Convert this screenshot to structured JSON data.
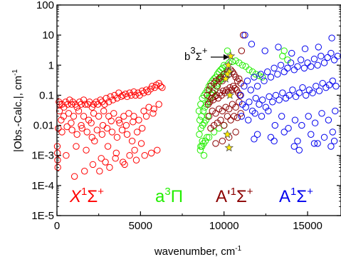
{
  "chart_data": {
    "type": "scatter",
    "title": "",
    "xlabel": "wavenumber, cm",
    "xlabel_sup": "-1",
    "ylabel": "|Obs.-Calc.|, cm",
    "ylabel_sup": "-1",
    "xlim": [
      0,
      17000
    ],
    "ylim": [
      1e-05,
      100
    ],
    "y_scale": "log",
    "grid": false,
    "x_ticks": [
      0,
      5000,
      10000,
      15000
    ],
    "x_tick_labels": [
      "0",
      "5000",
      "10000",
      "15000"
    ],
    "y_ticks": [
      100,
      10,
      1,
      0.1,
      0.01,
      0.001,
      0.0001,
      1e-05
    ],
    "y_tick_labels": [
      "100",
      "10",
      "1",
      "0.1",
      "0.01",
      "1E-3",
      "1E-4",
      "1E-5"
    ],
    "series": [
      {
        "color": "#ff0000",
        "marker": "circle-open",
        "x": [
          120,
          180,
          300,
          420,
          520,
          650,
          760,
          880,
          950,
          1100,
          1200,
          1350,
          1450,
          1600,
          1700,
          1850,
          1950,
          2100,
          2200,
          2350,
          2450,
          2600,
          2700,
          2850,
          2950,
          3100,
          3200,
          3350,
          3450,
          3600,
          3700,
          3850,
          3950,
          4100,
          4200,
          4350,
          4450,
          4600,
          4700,
          4850,
          4950,
          5100,
          5200,
          5350,
          5450,
          5600,
          5700,
          5850,
          5950,
          6100,
          6200,
          6300,
          150,
          400,
          700,
          1000,
          1300,
          1600,
          1900,
          2200,
          2500,
          2800,
          3100,
          3400,
          3700,
          4000,
          4300,
          4600,
          4900,
          5200,
          5500,
          5800,
          6100,
          80,
          300,
          600,
          900,
          1200,
          1500,
          1800,
          2100,
          2400,
          2700,
          3000,
          3300,
          3600,
          3900,
          4200,
          4500,
          4800,
          5100,
          20,
          30,
          40,
          50,
          550,
          1150,
          1750,
          2250,
          2650,
          3050,
          3550,
          3950,
          4350,
          4650,
          5050,
          250,
          850,
          1450,
          2050,
          2750,
          3250,
          3750,
          4150,
          4550,
          5350,
          5750,
          1050,
          1650,
          2150,
          2550,
          2900,
          3150,
          3500,
          4050,
          4750,
          5250,
          5650,
          6000
        ],
        "y": [
          0.06,
          0.05,
          0.05,
          0.04,
          0.06,
          0.05,
          0.07,
          0.05,
          0.06,
          0.05,
          0.04,
          0.06,
          0.05,
          0.07,
          0.05,
          0.05,
          0.06,
          0.04,
          0.05,
          0.06,
          0.05,
          0.07,
          0.06,
          0.05,
          0.08,
          0.06,
          0.09,
          0.07,
          0.1,
          0.08,
          0.12,
          0.09,
          0.1,
          0.11,
          0.09,
          0.12,
          0.1,
          0.13,
          0.1,
          0.12,
          0.1,
          0.14,
          0.12,
          0.15,
          0.13,
          0.16,
          0.2,
          0.18,
          0.22,
          0.25,
          0.2,
          0.18,
          0.03,
          0.02,
          0.025,
          0.02,
          0.03,
          0.02,
          0.015,
          0.025,
          0.02,
          0.03,
          0.02,
          0.025,
          0.015,
          0.02,
          0.025,
          0.02,
          0.015,
          0.03,
          0.04,
          0.035,
          0.05,
          0.008,
          0.006,
          0.009,
          0.007,
          0.005,
          0.008,
          0.006,
          0.004,
          0.007,
          0.005,
          0.008,
          0.006,
          0.004,
          0.007,
          0.005,
          0.003,
          0.006,
          0.008,
          0.002,
          0.0012,
          0.0007,
          0.0004,
          0.001,
          0.002,
          0.0015,
          0.003,
          0.0008,
          0.002,
          0.0012,
          0.0006,
          0.001,
          0.0015,
          0.0025,
          0.015,
          0.012,
          0.01,
          0.012,
          0.01,
          0.014,
          0.012,
          0.01,
          0.013,
          0.02,
          0.025,
          0.0002,
          0.0003,
          0.0005,
          0.0003,
          0.0006,
          0.0004,
          0.0008,
          0.0005,
          0.0007,
          0.001,
          0.0012,
          0.0015
        ]
      },
      {
        "color": "#22ee00",
        "marker": "circle-open",
        "x": [
          8500,
          8600,
          8700,
          8800,
          8900,
          9000,
          9100,
          9200,
          9300,
          9400,
          9500,
          9600,
          9700,
          9800,
          9900,
          10000,
          10100,
          10200,
          8550,
          8650,
          8750,
          8850,
          8950,
          9050,
          9150,
          9250,
          9350,
          9450,
          9550,
          9650,
          9750,
          9850,
          9950,
          10050,
          8520,
          8620,
          8720,
          8820,
          8920,
          9020,
          8600,
          8700,
          8800,
          9100,
          9400,
          9700,
          10000,
          10300,
          10500,
          10700,
          10900,
          11100,
          11300,
          11500,
          11700,
          11900,
          12100,
          12300,
          10200,
          13500,
          13600,
          13800,
          8580,
          8680,
          8780,
          8880,
          8980
        ],
        "y": [
          0.03,
          0.05,
          0.08,
          0.1,
          0.12,
          0.15,
          0.2,
          0.25,
          0.3,
          0.35,
          0.4,
          0.5,
          0.6,
          0.7,
          0.8,
          1.0,
          0.9,
          0.7,
          0.015,
          0.02,
          0.03,
          0.04,
          0.05,
          0.06,
          0.08,
          0.1,
          0.12,
          0.15,
          0.2,
          0.25,
          0.3,
          0.35,
          0.4,
          0.45,
          0.005,
          0.008,
          0.01,
          0.012,
          0.015,
          0.02,
          0.002,
          0.003,
          0.001,
          0.004,
          0.006,
          0.008,
          0.01,
          1.2,
          1.3,
          1.4,
          1.2,
          1.0,
          0.9,
          0.7,
          0.6,
          0.5,
          0.45,
          0.4,
          3.0,
          2.0,
          3.0,
          1.5,
          0.0015,
          0.002,
          0.0025,
          0.003,
          0.004
        ]
      },
      {
        "color": "#8b0000",
        "marker": "circle-open",
        "x": [
          9000,
          9100,
          9200,
          9300,
          9400,
          9500,
          9600,
          9700,
          9800,
          9900,
          10000,
          10100,
          10200,
          10300,
          10400,
          10500,
          10600,
          10700,
          10800,
          10900,
          11000,
          9050,
          9150,
          9250,
          9350,
          9450,
          9550,
          9650,
          9750,
          9850,
          9950,
          10050,
          10150,
          10250,
          10350,
          10450,
          10550,
          10650,
          10750,
          10850,
          10950,
          9100,
          9300,
          9500,
          9700,
          9900,
          10100,
          10300,
          10500,
          10700,
          10900,
          9200,
          9400,
          9600,
          9800,
          10000,
          10200,
          10400,
          10600,
          10800,
          11000,
          9500,
          9900,
          10300,
          10700,
          11050,
          11150
        ],
        "y": [
          0.1,
          0.15,
          0.2,
          0.12,
          0.25,
          0.3,
          0.2,
          0.35,
          0.4,
          0.3,
          0.5,
          0.4,
          0.6,
          0.5,
          0.7,
          0.6,
          0.5,
          0.4,
          0.3,
          0.35,
          0.25,
          0.05,
          0.06,
          0.08,
          0.07,
          0.09,
          0.1,
          0.08,
          0.12,
          0.1,
          0.14,
          0.12,
          0.15,
          0.13,
          0.18,
          0.15,
          0.2,
          0.17,
          0.15,
          0.12,
          0.1,
          0.02,
          0.03,
          0.025,
          0.035,
          0.03,
          0.04,
          0.035,
          0.05,
          0.04,
          0.06,
          0.008,
          0.01,
          0.012,
          0.015,
          0.01,
          0.02,
          0.015,
          0.02,
          0.018,
          0.025,
          0.0025,
          0.003,
          0.004,
          0.006,
          3.0,
          10.0
        ]
      },
      {
        "color": "#0000ee",
        "marker": "circle-open",
        "x": [
          11000,
          11200,
          11400,
          11600,
          11800,
          12000,
          12200,
          12400,
          12600,
          12800,
          13000,
          13200,
          13400,
          13600,
          13800,
          14000,
          14200,
          14400,
          14600,
          14800,
          15000,
          15200,
          15400,
          15600,
          15800,
          16000,
          16200,
          16400,
          16600,
          16800,
          11100,
          11300,
          11500,
          11700,
          11900,
          12100,
          12300,
          12500,
          12700,
          12900,
          13100,
          13300,
          13500,
          13700,
          13900,
          14100,
          14300,
          14500,
          14700,
          14900,
          15100,
          15300,
          15500,
          15700,
          15900,
          16100,
          16300,
          16500,
          16700,
          11050,
          11450,
          11850,
          12250,
          12650,
          13050,
          13450,
          13850,
          14250,
          14650,
          15050,
          15450,
          15850,
          16250,
          16650,
          12000,
          12800,
          13600,
          14400,
          15200,
          16000,
          16500,
          11250,
          11650,
          12450,
          13250,
          14050,
          14850,
          15650,
          16450,
          11800,
          13000,
          14200,
          15400,
          16600,
          14500,
          15600,
          16400
        ],
        "y": [
          0.1,
          0.2,
          0.3,
          0.15,
          0.4,
          0.2,
          0.5,
          0.3,
          0.6,
          0.4,
          0.8,
          0.5,
          1.0,
          0.6,
          0.8,
          1.2,
          0.7,
          0.9,
          1.5,
          0.8,
          1.2,
          0.9,
          1.6,
          1.0,
          2.0,
          1.2,
          1.8,
          2.5,
          1.5,
          2.0,
          0.05,
          0.04,
          0.06,
          0.03,
          0.08,
          0.05,
          0.07,
          0.04,
          0.09,
          0.06,
          0.1,
          0.07,
          0.12,
          0.08,
          0.1,
          0.15,
          0.09,
          0.12,
          0.18,
          0.1,
          0.15,
          0.12,
          0.2,
          0.14,
          0.25,
          0.18,
          0.22,
          0.3,
          0.2,
          0.02,
          0.015,
          0.025,
          0.02,
          0.03,
          0.01,
          0.02,
          0.008,
          0.015,
          0.01,
          0.02,
          0.012,
          0.025,
          0.015,
          0.03,
          0.005,
          0.004,
          0.006,
          0.003,
          0.005,
          0.004,
          0.006,
          10.0,
          5.0,
          3.0,
          4.0,
          2.5,
          3.5,
          4.0,
          8.0,
          0.0035,
          0.003,
          0.002,
          0.0025,
          0.003,
          0.0015,
          0.0025,
          0.002
        ]
      },
      {
        "color": "#ffee00",
        "marker": "star",
        "x": [
          10400,
          10250,
          10300,
          10200,
          10100,
          10350,
          10200,
          10300
        ],
        "y": [
          2.0,
          1.0,
          0.6,
          0.5,
          0.35,
          0.1,
          0.005,
          0.0018
        ]
      }
    ],
    "annotations": {
      "b3": {
        "text": "b",
        "sup": "3",
        "main": "Σ",
        "sup2": "+",
        "x": 10400,
        "y": 2.0
      },
      "x1": {
        "main": "X",
        "sup": "1",
        "sym": "Σ",
        "sup2": "+",
        "color": "#ff0000"
      },
      "a3": {
        "main": "a",
        "sup": "3",
        "sym": "Π",
        "color": "#22ee00"
      },
      "ap": {
        "main": "A'",
        "sup": "1",
        "sym": "Σ",
        "sup2": "+",
        "color": "#8b0000"
      },
      "a1": {
        "main": "A",
        "sup": "1",
        "sym": "Σ",
        "sup2": "+",
        "color": "#0000ee"
      }
    }
  }
}
